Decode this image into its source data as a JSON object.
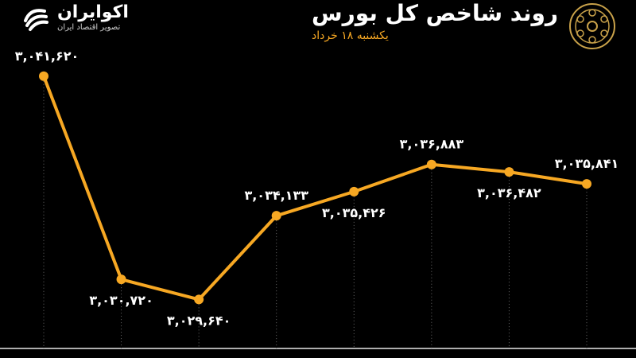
{
  "header": {
    "title": "روند شاخص کل بورس",
    "subtitle": "یکشنبه ۱۸ خرداد",
    "brand_name": "اکوایران",
    "brand_tagline": "تصویر اقتصاد ایران"
  },
  "colors": {
    "background": "#000000",
    "line": "#f7a823",
    "labels": "#ffffff",
    "accent": "#f7a823"
  },
  "icons": {
    "brand_logo": "ecoiran-swirl-icon",
    "seal": "tehran-stock-exchange-seal-icon"
  },
  "chart_data": {
    "type": "line",
    "values": [
      3041620,
      3030720,
      3029640,
      3034133,
      3035426,
      3036883,
      3036482,
      3035841
    ],
    "value_labels": [
      "۳,۰۴۱,۶۲۰",
      "۳,۰۳۰,۷۲۰",
      "۳,۰۲۹,۶۴۰",
      "۳,۰۳۴,۱۳۳",
      "۳,۰۳۵,۴۲۶",
      "۳,۰۳۶,۸۸۳",
      "۳,۰۳۶,۴۸۲",
      "۳,۰۳۵,۸۴۱"
    ],
    "label_side": [
      "above",
      "below",
      "below",
      "above",
      "below",
      "above",
      "below",
      "above"
    ],
    "ylim": [
      3026500,
      3044000
    ],
    "grid": "vertical-dotted"
  }
}
